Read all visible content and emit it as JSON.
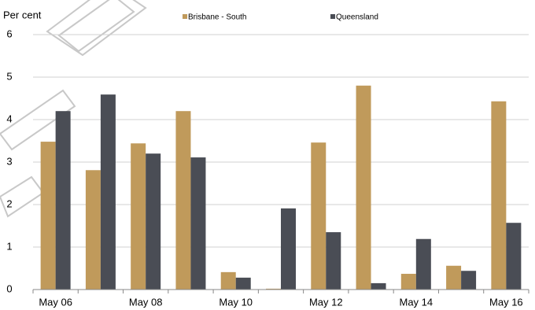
{
  "chart_data": {
    "type": "bar",
    "y_label": "Per cent",
    "categories": [
      "May 06",
      null,
      "May 08",
      null,
      "May 10",
      null,
      "May 12",
      null,
      "May 14",
      null,
      "May 16"
    ],
    "series": [
      {
        "name": "Brisbane - South",
        "color": "#c09a5b",
        "values": [
          3.48,
          2.81,
          3.44,
          4.2,
          0.41,
          0.02,
          3.46,
          4.8,
          0.37,
          0.56,
          4.43
        ]
      },
      {
        "name": "Queensland",
        "color": "#4a4d55",
        "values": [
          4.2,
          4.59,
          3.2,
          3.11,
          0.28,
          1.91,
          1.35,
          0.15,
          1.19,
          0.44,
          1.57
        ]
      }
    ],
    "ylim": [
      0,
      6
    ],
    "yticks": [
      0,
      1,
      2,
      3,
      4,
      5,
      6
    ],
    "grid": true
  }
}
